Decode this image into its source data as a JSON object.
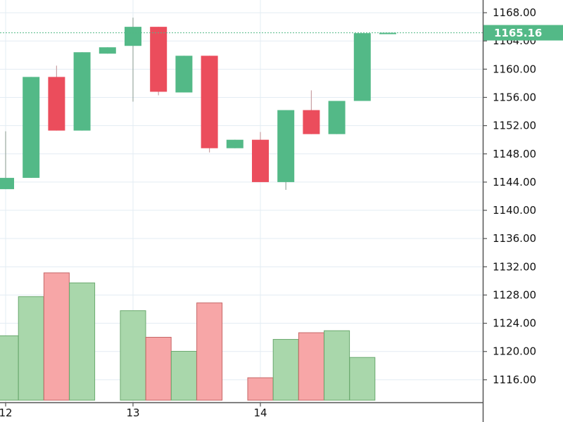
{
  "chart_data": {
    "type": "candlestick",
    "price_axis": {
      "ylim": [
        1112.8,
        1169.8
      ],
      "ticks": [
        1116,
        1120,
        1124,
        1128,
        1132,
        1136,
        1140,
        1144,
        1148,
        1152,
        1156,
        1160,
        1164,
        1168
      ],
      "tick_labels": [
        "1116.00",
        "1120.00",
        "1124.00",
        "1128.00",
        "1132.00",
        "1136.00",
        "1140.00",
        "1144.00",
        "1148.00",
        "1152.00",
        "1156.00",
        "1160.00",
        "1164.00",
        "1168.00"
      ]
    },
    "time_axis": {
      "labels": [
        "12",
        "13",
        "14"
      ],
      "label_bar_index": [
        0,
        5,
        10
      ]
    },
    "last_price": {
      "value": 1165.16,
      "label": "1165.16"
    },
    "grid": true,
    "candles": [
      {
        "open": 1143.0,
        "close": 1144.6,
        "high": 1151.2,
        "low": 1143.0
      },
      {
        "open": 1144.6,
        "close": 1158.9,
        "high": 1158.9,
        "low": 1144.6
      },
      {
        "open": 1158.9,
        "close": 1151.3,
        "high": 1160.5,
        "low": 1151.3
      },
      {
        "open": 1151.3,
        "close": 1162.4,
        "high": 1162.4,
        "low": 1151.3
      },
      {
        "open": 1162.2,
        "close": 1163.1,
        "high": 1163.1,
        "low": 1162.2
      },
      {
        "open": 1163.3,
        "close": 1166.0,
        "high": 1167.3,
        "low": 1155.4
      },
      {
        "open": 1166.0,
        "close": 1156.8,
        "high": 1166.0,
        "low": 1156.3
      },
      {
        "open": 1156.7,
        "close": 1161.9,
        "high": 1161.9,
        "low": 1156.7
      },
      {
        "open": 1161.9,
        "close": 1148.8,
        "high": 1161.9,
        "low": 1148.2
      },
      {
        "open": 1148.8,
        "close": 1150.0,
        "high": 1150.0,
        "low": 1148.8
      },
      {
        "open": 1150.0,
        "close": 1144.0,
        "high": 1151.1,
        "low": 1144.0
      },
      {
        "open": 1144.0,
        "close": 1154.2,
        "high": 1154.2,
        "low": 1142.9
      },
      {
        "open": 1154.2,
        "close": 1150.8,
        "high": 1157.0,
        "low": 1150.8
      },
      {
        "open": 1150.8,
        "close": 1155.5,
        "high": 1155.5,
        "low": 1150.8
      },
      {
        "open": 1155.5,
        "close": 1165.1,
        "high": 1165.1,
        "low": 1155.5
      },
      {
        "open": 1165.1,
        "close": 1165.16,
        "high": 1165.16,
        "low": 1165.1
      }
    ],
    "volume": {
      "bar_index": [
        0,
        1,
        2,
        3,
        5,
        6,
        7,
        8,
        10,
        11,
        12,
        13,
        14
      ],
      "relative_height": [
        0.482,
        0.775,
        0.953,
        0.878,
        0.67,
        0.471,
        0.366,
        0.728,
        0.168,
        0.455,
        0.505,
        0.52,
        0.32
      ],
      "up": [
        true,
        true,
        false,
        true,
        true,
        false,
        true,
        false,
        false,
        true,
        false,
        true,
        true
      ]
    },
    "colors": {
      "up": "#53b987",
      "down": "#eb4d5c",
      "volume_up": "#a9d7ab",
      "volume_down": "#f7a6a7",
      "volume_up_border": "#6aa96e",
      "volume_down_border": "#c76767",
      "grid": "#e3ecf3",
      "axis": "#555555",
      "last_price": "#53b987"
    }
  }
}
